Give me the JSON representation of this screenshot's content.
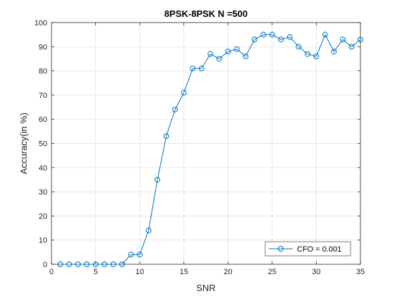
{
  "chart_data": {
    "type": "line",
    "title": "8PSK-8PSK N =500",
    "xlabel": "SNR",
    "ylabel": "Accuracy(in %)",
    "xlim": [
      0,
      35
    ],
    "ylim": [
      0,
      100
    ],
    "xticks": [
      0,
      5,
      10,
      15,
      20,
      25,
      30,
      35
    ],
    "yticks": [
      0,
      10,
      20,
      30,
      40,
      50,
      60,
      70,
      80,
      90,
      100
    ],
    "grid": true,
    "legend_position": "bottom-right",
    "series": [
      {
        "name": "CFO = 0.001",
        "color": "#0072BD",
        "marker": "circle",
        "x": [
          1,
          2,
          3,
          4,
          5,
          6,
          7,
          8,
          9,
          10,
          11,
          12,
          13,
          14,
          15,
          16,
          17,
          18,
          19,
          20,
          21,
          22,
          23,
          24,
          25,
          26,
          27,
          28,
          29,
          30,
          31,
          32,
          33,
          34,
          35
        ],
        "y": [
          0,
          0,
          0,
          0,
          0,
          0,
          0,
          0,
          4,
          4,
          14,
          35,
          53,
          64,
          71,
          81,
          81,
          87,
          85,
          88,
          89,
          86,
          93,
          95,
          95,
          93,
          94,
          90,
          87,
          86,
          95,
          88,
          93,
          90,
          93
        ]
      }
    ]
  }
}
